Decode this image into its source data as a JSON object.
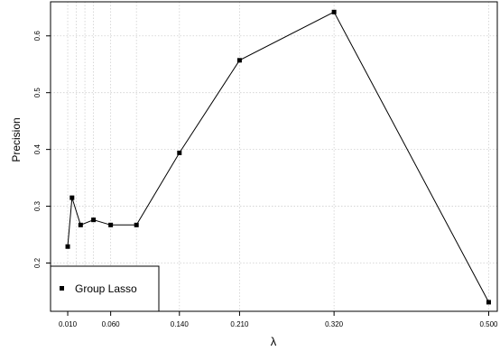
{
  "chart_data": {
    "type": "line",
    "xlabel": "λ",
    "ylabel": "Precision",
    "xlim": [
      -0.01,
      0.51
    ],
    "ylim": [
      0.115,
      0.66
    ],
    "x_ticks": [
      0.01,
      0.06,
      0.14,
      0.21,
      0.32,
      0.5
    ],
    "x_tick_labels": [
      "0.010",
      "0.060",
      "0.140",
      "0.210",
      "0.320",
      "0.500"
    ],
    "x_grid": [
      0.01,
      0.02,
      0.03,
      0.04,
      0.06,
      0.09,
      0.14,
      0.21,
      0.32,
      0.5
    ],
    "y_ticks": [
      0.2,
      0.3,
      0.4,
      0.5,
      0.6
    ],
    "y_tick_labels": [
      "0.2",
      "0.3",
      "0.4",
      "0.5",
      "0.6"
    ],
    "grid": true,
    "legend_position": "bottom-left",
    "series": [
      {
        "name": "Group Lasso",
        "marker": "square",
        "color": "#000000",
        "x": [
          0.01,
          0.015,
          0.025,
          0.04,
          0.06,
          0.09,
          0.14,
          0.21,
          0.32,
          0.5
        ],
        "y": [
          0.229,
          0.315,
          0.267,
          0.276,
          0.267,
          0.267,
          0.394,
          0.557,
          0.642,
          0.131
        ]
      }
    ]
  }
}
